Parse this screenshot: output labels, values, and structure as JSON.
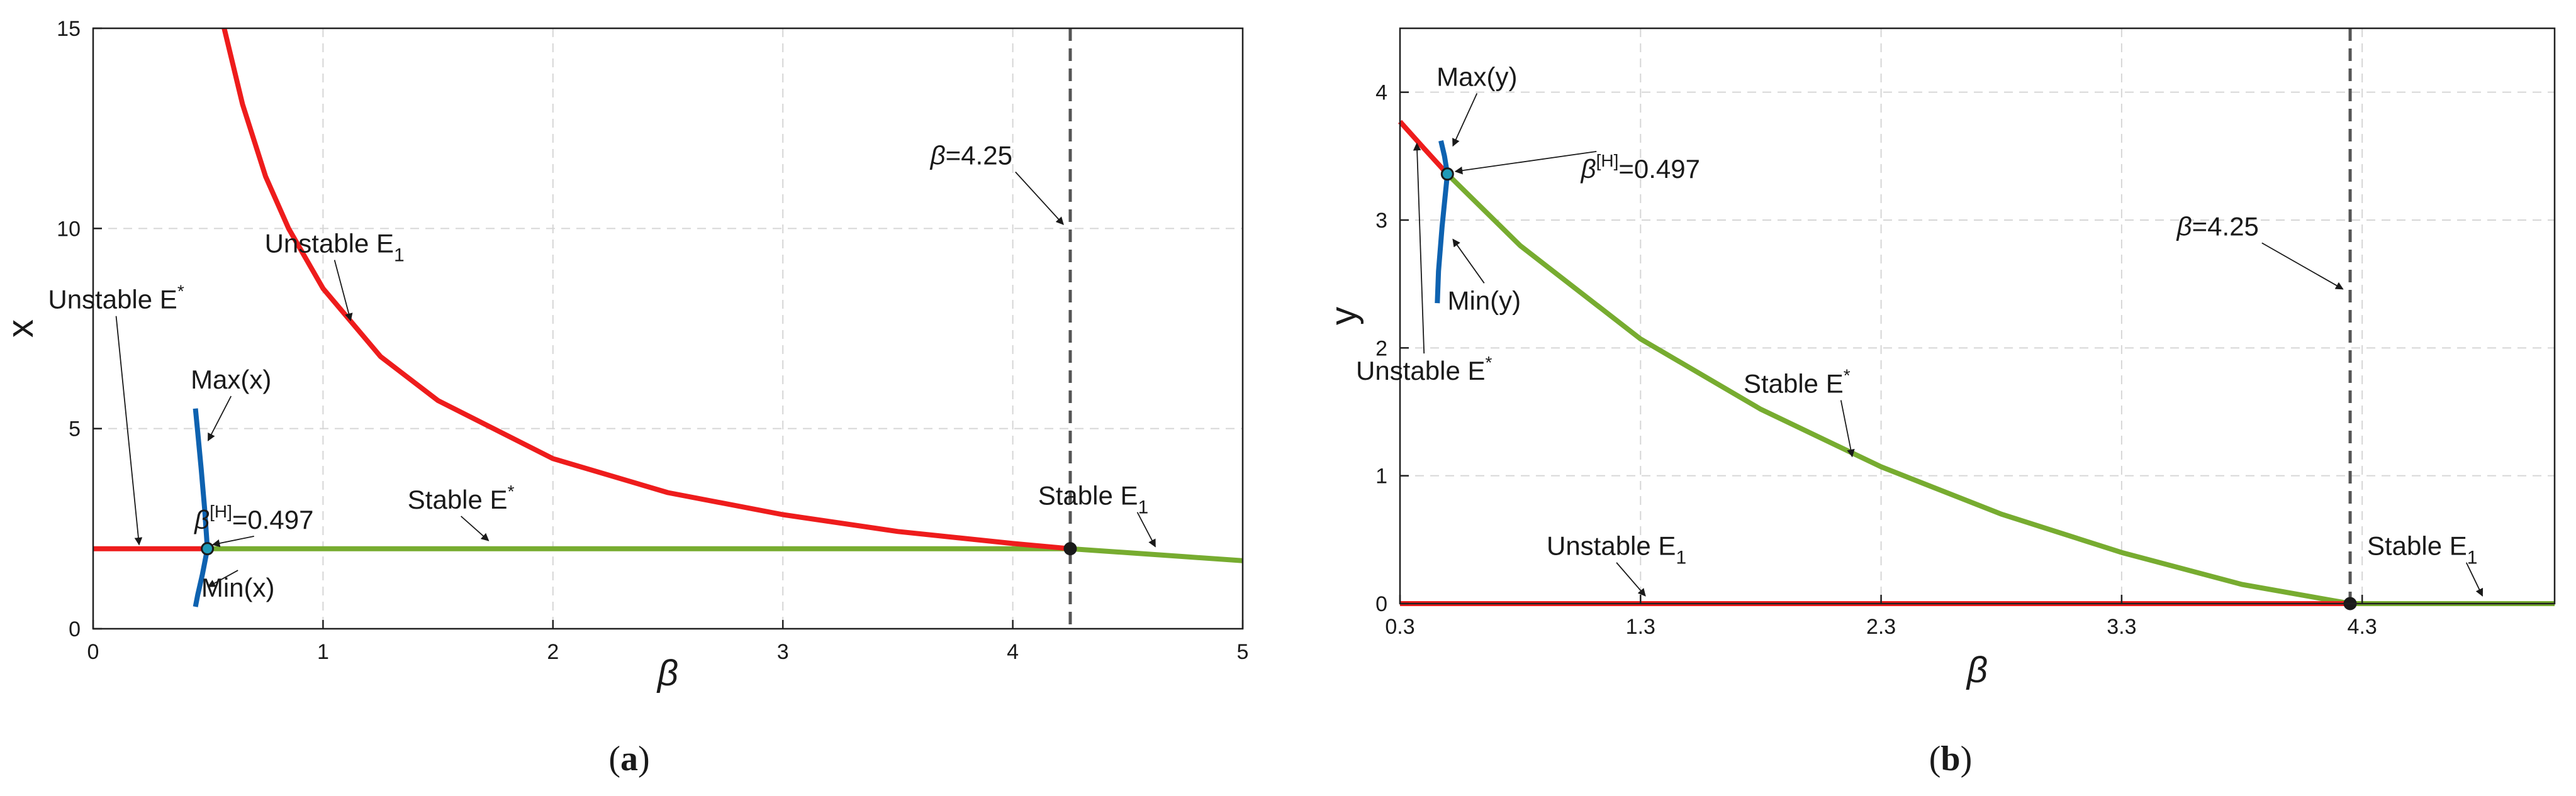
{
  "chart_data": [
    {
      "type": "line",
      "panel_caption": {
        "label": "(a)",
        "letter": "a"
      },
      "xlabel": "β",
      "ylabel": "x",
      "xlim": [
        0,
        5
      ],
      "ylim": [
        0,
        15
      ],
      "xticks": [
        0,
        1,
        2,
        3,
        4,
        5
      ],
      "yticks": [
        0,
        5,
        10,
        15
      ],
      "xtick_labels": [
        "0",
        "1",
        "2",
        "3",
        "4",
        "5"
      ],
      "ytick_labels": [
        "0",
        "5",
        "10",
        "15"
      ],
      "grid": true,
      "series": [
        {
          "name": "Unstable E* (left)",
          "color": "#ee1c1c",
          "x": [
            0,
            0.497
          ],
          "y": [
            2,
            2
          ]
        },
        {
          "name": "Stable E*",
          "color": "#77ac30",
          "x": [
            0.497,
            4.25
          ],
          "y": [
            2,
            2
          ]
        },
        {
          "name": "Unstable E1",
          "color": "#ee1c1c",
          "x": [
            0.57,
            0.65,
            0.75,
            0.85,
            1.0,
            1.25,
            1.5,
            2.0,
            2.5,
            3.0,
            3.5,
            4.0,
            4.25
          ],
          "y": [
            15.0,
            13.1,
            11.3,
            10.0,
            8.5,
            6.8,
            5.7,
            4.25,
            3.4,
            2.85,
            2.43,
            2.13,
            2.0
          ]
        },
        {
          "name": "Stable E1",
          "color": "#77ac30",
          "x": [
            4.25,
            4.5,
            4.75,
            5.0
          ],
          "y": [
            2.0,
            1.9,
            1.8,
            1.7
          ]
        },
        {
          "name": "Max(x)",
          "color": "#0e62b0",
          "x": [
            0.497,
            0.485,
            0.47,
            0.455,
            0.445
          ],
          "y": [
            2.0,
            3.0,
            4.0,
            4.9,
            5.5
          ]
        },
        {
          "name": "Min(x)",
          "color": "#0e62b0",
          "x": [
            0.497,
            0.475,
            0.455,
            0.445
          ],
          "y": [
            2.0,
            1.35,
            0.85,
            0.55
          ]
        }
      ],
      "points": [
        {
          "name": "hopf-point",
          "x": 0.497,
          "y": 2,
          "fill": "#1f9ab8"
        },
        {
          "name": "transcritical-point",
          "x": 4.25,
          "y": 2,
          "fill": "#1a1a1a"
        }
      ],
      "vline": {
        "x": 4.25,
        "label": "β=4.25"
      },
      "annotations": [
        {
          "id": "unstable-e1",
          "main": "Unstable E",
          "sub": "1",
          "x": 1.05,
          "y": 9.4,
          "ax": 1.12,
          "ay": 7.7
        },
        {
          "id": "unstable-estar",
          "main": "Unstable E",
          "sup": "*",
          "x": 0.1,
          "y": 8.0,
          "ax": 0.2,
          "ay": 2.1
        },
        {
          "id": "max-x",
          "main": "Max(x)",
          "x": 0.6,
          "y": 6.0,
          "ax": 0.5,
          "ay": 4.7
        },
        {
          "id": "hopf-label",
          "main": "β",
          "sup": "[H]",
          "tail": "=0.497",
          "x": 0.7,
          "y": 2.5,
          "ax": 0.52,
          "ay": 2.1
        },
        {
          "id": "min-x",
          "main": "Min(x)",
          "x": 0.63,
          "y": 0.8,
          "ax": 0.5,
          "ay": 1.05
        },
        {
          "id": "stable-estar",
          "main": "Stable E",
          "sup": "*",
          "x": 1.6,
          "y": 3.0,
          "ax": 1.72,
          "ay": 2.2
        },
        {
          "id": "stable-e1",
          "main": "Stable E",
          "sub": "1",
          "x": 4.35,
          "y": 3.1,
          "ax": 4.62,
          "ay": 2.05
        },
        {
          "id": "beta-425",
          "main": "β",
          "tail": "=4.25",
          "x": 3.82,
          "y": 11.6,
          "ax": 4.22,
          "ay": 10.1
        }
      ]
    },
    {
      "type": "line",
      "panel_caption": {
        "label": "(b)",
        "letter": "b"
      },
      "xlabel": "β",
      "ylabel": "y",
      "xlim": [
        0.3,
        5.1
      ],
      "ylim": [
        0,
        4.5
      ],
      "xticks": [
        0.3,
        1.3,
        2.3,
        3.3,
        4.3
      ],
      "yticks": [
        0,
        1,
        2,
        3,
        4
      ],
      "xtick_labels": [
        "0.3",
        "1.3",
        "2.3",
        "3.3",
        "4.3"
      ],
      "ytick_labels": [
        "0",
        "1",
        "2",
        "3",
        "4"
      ],
      "grid": true,
      "series": [
        {
          "name": "Unstable E* (left)",
          "color": "#ee1c1c",
          "x": [
            0.3,
            0.4,
            0.497
          ],
          "y": [
            3.77,
            3.56,
            3.36
          ]
        },
        {
          "name": "Stable E*",
          "color": "#77ac30",
          "x": [
            0.497,
            0.8,
            1.3,
            1.8,
            2.3,
            2.8,
            3.3,
            3.8,
            4.25
          ],
          "y": [
            3.36,
            2.8,
            2.07,
            1.52,
            1.07,
            0.7,
            0.4,
            0.15,
            0.0
          ]
        },
        {
          "name": "Unstable E1",
          "color": "#ee1c1c",
          "x": [
            0.3,
            4.25
          ],
          "y": [
            0,
            0
          ]
        },
        {
          "name": "Stable E1",
          "color": "#77ac30",
          "x": [
            4.25,
            5.1
          ],
          "y": [
            0,
            0
          ]
        },
        {
          "name": "Max(y)",
          "color": "#0e62b0",
          "x": [
            0.497,
            0.485,
            0.47
          ],
          "y": [
            3.36,
            3.5,
            3.62
          ]
        },
        {
          "name": "Min(y)",
          "color": "#0e62b0",
          "x": [
            0.497,
            0.475,
            0.46,
            0.455
          ],
          "y": [
            3.36,
            2.95,
            2.6,
            2.35
          ]
        }
      ],
      "points": [
        {
          "name": "hopf-point",
          "x": 0.497,
          "y": 3.36,
          "fill": "#1f9ab8"
        },
        {
          "name": "transcritical-point",
          "x": 4.25,
          "y": 0,
          "fill": "#1a1a1a"
        }
      ],
      "vline": {
        "x": 4.25,
        "label": "β=4.25"
      },
      "annotations": [
        {
          "id": "max-y",
          "main": "Max(y)",
          "x": 0.62,
          "y": 4.05,
          "ax": 0.52,
          "ay": 3.58
        },
        {
          "id": "hopf-label",
          "main": "β",
          "sup": "[H]",
          "tail": "=0.497",
          "x": 1.3,
          "y": 3.33,
          "ax": 0.53,
          "ay": 3.38
        },
        {
          "id": "min-y",
          "main": "Min(y)",
          "x": 0.65,
          "y": 2.3,
          "ax": 0.52,
          "ay": 2.85
        },
        {
          "id": "unstable-estar",
          "main": "Unstable E",
          "sup": "*",
          "x": 0.4,
          "y": 1.75,
          "ax": 0.37,
          "ay": 3.6
        },
        {
          "id": "stable-estar",
          "main": "Stable E",
          "sup": "*",
          "x": 1.95,
          "y": 1.65,
          "ax": 2.18,
          "ay": 1.15
        },
        {
          "id": "unstable-e1",
          "main": "Unstable E",
          "sub": "1",
          "x": 1.2,
          "y": 0.38,
          "ax": 1.32,
          "ay": 0.06
        },
        {
          "id": "stable-e1",
          "main": "Stable E",
          "sub": "1",
          "x": 4.55,
          "y": 0.38,
          "ax": 4.8,
          "ay": 0.06
        },
        {
          "id": "beta-425",
          "main": "β",
          "tail": "=4.25",
          "x": 3.7,
          "y": 2.88,
          "ax": 4.22,
          "ay": 2.46
        }
      ]
    }
  ]
}
